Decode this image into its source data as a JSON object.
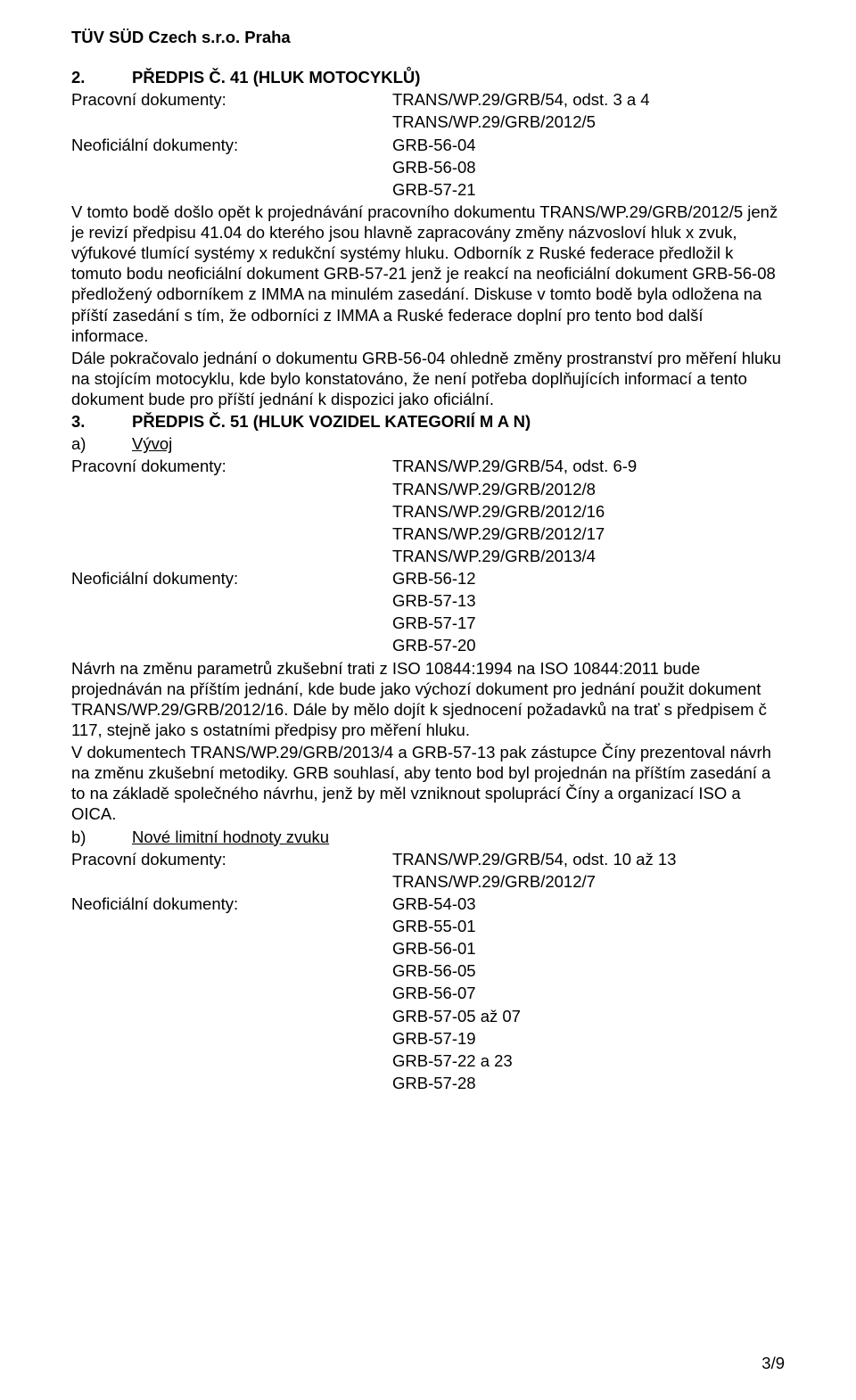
{
  "header": {
    "title": "TÜV SÜD Czech s.r.o. Praha"
  },
  "s2": {
    "num": "2.",
    "title": "PŘEDPIS Č. 41 (HLUK MOTOCYKLŮ)",
    "work_label": "Pracovní dokumenty:",
    "work_docs": [
      "TRANS/WP.29/GRB/54, odst. 3 a 4",
      "TRANS/WP.29/GRB/2012/5"
    ],
    "unofficial_label": "Neoficiální dokumenty:",
    "unofficial_docs": [
      "GRB-56-04",
      "GRB-56-08",
      "GRB-57-21"
    ],
    "body": "V tomto bodě došlo opět k projednávání pracovního dokumentu TRANS/WP.29/GRB/2012/5 jenž je revizí předpisu 41.04 do kterého jsou hlavně zapracovány změny názvosloví hluk x zvuk, výfukové tlumící systémy x redukční systémy hluku. Odborník z Ruské federace předložil k tomuto bodu neoficiální dokument GRB-57-21 jenž je reakcí na neoficiální dokument GRB-56-08 předložený odborníkem z IMMA na minulém zasedání. Diskuse v tomto bodě byla odložena na příští zasedání s tím, že odborníci z IMMA a Ruské federace doplní pro tento bod další informace.",
    "body2": "Dále pokračovalo jednání o dokumentu GRB-56-04 ohledně změny prostranství pro měření hluku na stojícím motocyklu, kde bylo konstatováno, že není potřeba doplňujících informací a tento dokument bude pro příští jednání k dispozici jako oficiální."
  },
  "s3": {
    "num": "3.",
    "title": "PŘEDPIS Č. 51 (HLUK VOZIDEL KATEGORIÍ M A N)",
    "a": {
      "lbl": "a)",
      "txt": "Vývoj",
      "work_label": "Pracovní dokumenty:",
      "work_docs": [
        "TRANS/WP.29/GRB/54, odst. 6-9",
        "TRANS/WP.29/GRB/2012/8",
        "TRANS/WP.29/GRB/2012/16",
        "TRANS/WP.29/GRB/2012/17",
        "TRANS/WP.29/GRB/2013/4"
      ],
      "unofficial_label": "Neoficiální dokumenty:",
      "unofficial_docs": [
        "GRB-56-12",
        "GRB-57-13",
        "GRB-57-17",
        "GRB-57-20"
      ],
      "body": "Návrh na změnu parametrů zkušební trati z ISO 10844:1994 na ISO 10844:2011 bude projednáván na příštím jednání, kde bude jako výchozí dokument pro jednání použit dokument TRANS/WP.29/GRB/2012/16. Dále by mělo dojít k sjednocení požadavků na trať s předpisem č 117, stejně jako s ostatními předpisy pro měření hluku.",
      "body2": "V dokumentech TRANS/WP.29/GRB/2013/4 a GRB-57-13 pak zástupce Číny prezentoval návrh na změnu zkušební metodiky. GRB souhlasí, aby tento bod byl projednán na příštím zasedání a to na základě společného návrhu, jenž by měl vzniknout spoluprácí Číny a organizací ISO a OICA."
    },
    "b": {
      "lbl": "b)",
      "txt": "Nové limitní hodnoty zvuku",
      "work_label": "Pracovní dokumenty:",
      "work_docs": [
        "TRANS/WP.29/GRB/54, odst. 10 až 13",
        "TRANS/WP.29/GRB/2012/7"
      ],
      "unofficial_label": "Neoficiální dokumenty:",
      "unofficial_docs": [
        "GRB-54-03",
        "GRB-55-01",
        "GRB-56-01",
        "GRB-56-05",
        "GRB-56-07",
        "GRB-57-05 až 07",
        "GRB-57-19",
        "GRB-57-22 a 23",
        "GRB-57-28"
      ]
    }
  },
  "footer": {
    "page": "3/9"
  }
}
